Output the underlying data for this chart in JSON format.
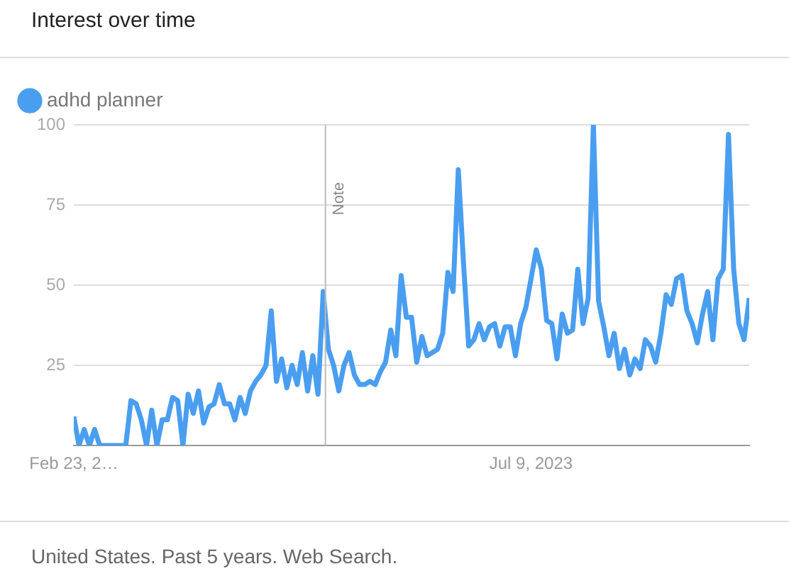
{
  "chart_data": {
    "type": "line",
    "title": "Interest over time",
    "x": [
      "2020-02-23",
      "2020-03-08",
      "2020-03-22",
      "2020-04-05",
      "2020-04-19",
      "2020-05-03",
      "2020-05-17",
      "2020-05-31",
      "2020-06-14",
      "2020-06-28",
      "2020-07-12",
      "2020-07-26",
      "2020-08-09",
      "2020-08-23",
      "2020-09-06",
      "2020-09-20",
      "2020-10-04",
      "2020-10-18",
      "2020-11-01",
      "2020-11-15",
      "2020-11-29",
      "2020-12-13",
      "2020-12-27",
      "2021-01-10",
      "2021-01-24",
      "2021-02-07",
      "2021-02-21",
      "2021-03-07",
      "2021-03-21",
      "2021-04-04",
      "2021-04-18",
      "2021-05-02",
      "2021-05-16",
      "2021-05-30",
      "2021-06-13",
      "2021-06-27",
      "2021-07-11",
      "2021-07-25",
      "2021-08-08",
      "2021-08-22",
      "2021-09-05",
      "2021-09-19",
      "2021-10-03",
      "2021-10-17",
      "2021-10-31",
      "2021-11-14",
      "2021-11-28",
      "2021-12-12",
      "2021-12-26",
      "2022-01-09",
      "2022-01-23",
      "2022-02-06",
      "2022-02-20",
      "2022-03-06",
      "2022-03-20",
      "2022-04-03",
      "2022-04-17",
      "2022-05-01",
      "2022-05-15",
      "2022-05-29",
      "2022-06-12",
      "2022-06-26",
      "2022-07-10",
      "2022-07-24",
      "2022-08-07",
      "2022-08-21",
      "2022-09-04",
      "2022-09-18",
      "2022-10-02",
      "2022-10-16",
      "2022-10-30",
      "2022-11-13",
      "2022-11-27",
      "2022-12-11",
      "2022-12-25",
      "2023-01-08",
      "2023-01-22",
      "2023-02-05",
      "2023-02-19",
      "2023-03-05",
      "2023-03-19",
      "2023-04-02",
      "2023-04-16",
      "2023-04-30",
      "2023-05-14",
      "2023-05-28",
      "2023-06-11",
      "2023-06-25",
      "2023-07-09",
      "2023-07-23",
      "2023-08-06",
      "2023-08-20",
      "2023-09-03",
      "2023-09-17",
      "2023-10-01",
      "2023-10-15",
      "2023-10-29",
      "2023-11-12",
      "2023-11-26",
      "2023-12-10",
      "2023-12-24",
      "2024-01-07",
      "2024-01-21",
      "2024-02-04",
      "2024-02-18",
      "2024-03-03",
      "2024-03-17",
      "2024-03-31",
      "2024-04-14",
      "2024-04-28",
      "2024-05-12",
      "2024-05-26",
      "2024-06-09",
      "2024-06-23",
      "2024-07-07",
      "2024-07-21",
      "2024-08-04",
      "2024-08-18",
      "2024-09-01",
      "2024-09-15",
      "2024-09-29",
      "2024-10-13",
      "2024-10-27",
      "2024-11-10",
      "2024-11-24",
      "2024-12-08",
      "2024-12-22",
      "2025-01-05",
      "2025-01-19",
      "2025-02-02",
      "2025-02-16"
    ],
    "series": [
      {
        "name": "adhd planner",
        "color": "#4a9ef0",
        "values": [
          9,
          0,
          5,
          0,
          5,
          0,
          0,
          0,
          0,
          0,
          0,
          14,
          13,
          8,
          0,
          11,
          0,
          8,
          8,
          15,
          14,
          0,
          16,
          10,
          17,
          7,
          12,
          13,
          19,
          13,
          13,
          8,
          15,
          10,
          17,
          20,
          22,
          25,
          42,
          20,
          27,
          18,
          25,
          19,
          29,
          17,
          28,
          16,
          48,
          30,
          25,
          17,
          25,
          29,
          22,
          19,
          19,
          20,
          19,
          23,
          26,
          36,
          28,
          53,
          40,
          40,
          26,
          34,
          28,
          29,
          30,
          35,
          54,
          48,
          86,
          57,
          31,
          33,
          38,
          33,
          37,
          38,
          31,
          37,
          37,
          28,
          38,
          43,
          52,
          61,
          55,
          39,
          38,
          27,
          41,
          35,
          36,
          55,
          38,
          46,
          100,
          45,
          37,
          28,
          35,
          24,
          30,
          22,
          27,
          24,
          33,
          31,
          26,
          35,
          47,
          44,
          52,
          53,
          42,
          38,
          32,
          41,
          48,
          33,
          52,
          55,
          97,
          55,
          38,
          33,
          46
        ]
      }
    ],
    "xlim": [
      "2020-02-23",
      "2025-02-16"
    ],
    "xticks": [
      {
        "value": "2020-02-23",
        "label": "Feb 23, 2…"
      },
      {
        "value": "2023-07-09",
        "label": "Jul 9, 2023"
      }
    ],
    "ylim": [
      0,
      100
    ],
    "yticks": [
      {
        "value": 0,
        "label": null
      },
      25,
      50,
      75,
      100
    ],
    "grid": "y",
    "legend": "top left",
    "marker": "none",
    "ref_lines": [
      {
        "axis": "x",
        "value": "2022-01-01",
        "label": "Note"
      }
    ],
    "annotations": [
      "United States. Past 5 years. Web Search."
    ]
  }
}
